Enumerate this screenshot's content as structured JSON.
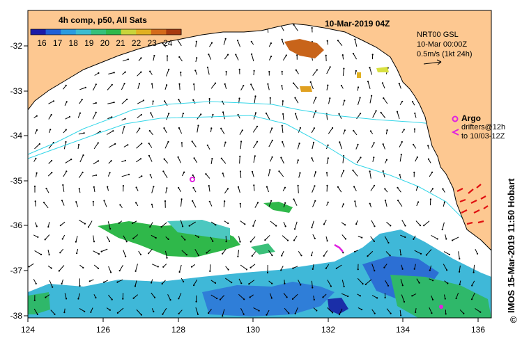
{
  "map": {
    "title": "10-Mar-2019 04Z",
    "colorbar_title": "4h comp, p50, All Sats",
    "colorbar_ticks": [
      "16",
      "17",
      "18",
      "19",
      "20",
      "21",
      "22",
      "23",
      "24"
    ],
    "colorbar_colors": [
      "#1a1aa8",
      "#1f5fd6",
      "#2a9be0",
      "#3cbcd0",
      "#35c07a",
      "#2fb84a",
      "#c8d43a",
      "#e0b020",
      "#d46a1a",
      "#a83a10"
    ],
    "x_ticks": [
      "124",
      "126",
      "128",
      "130",
      "132",
      "134",
      "136"
    ],
    "y_ticks": [
      "-32",
      "-33",
      "-34",
      "-35",
      "-36",
      "-37",
      "-38"
    ],
    "legend": {
      "model": "NRT00 GSL",
      "time": "10-Mar 00:00Z",
      "scale": "0.5m/s (1kt 24h)"
    },
    "argo_label": "Argo",
    "drifters_line1": "drifters@12h",
    "drifters_line2": "to 10/03-12Z",
    "credit": "IMOS 15-Mar-2019 11:50 Hobart",
    "credit_symbol": "©",
    "colors": {
      "land": "#fdc891",
      "ocean": "#ffffff",
      "contour": "#33d6e8",
      "argo": "#e020e0",
      "drifter": "#e01010"
    }
  }
}
